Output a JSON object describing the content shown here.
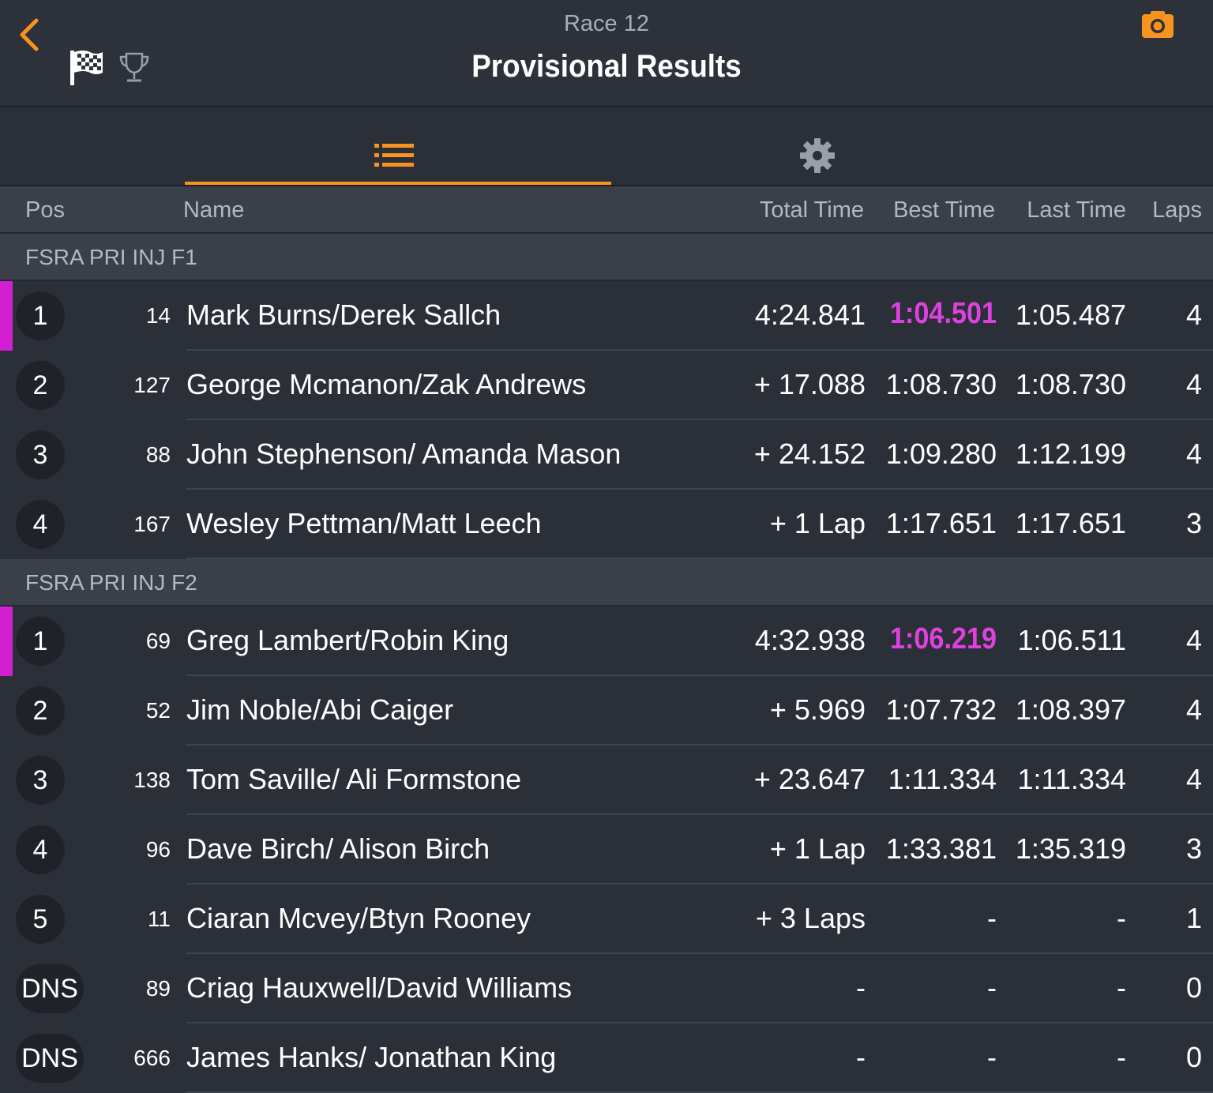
{
  "header": {
    "race_label": "Race 12",
    "title": "Provisional Results",
    "icons": [
      "back-chevron-icon",
      "checkered-flag-icon",
      "trophy-icon",
      "camera-icon"
    ]
  },
  "tabs": [
    {
      "name": "list-icon",
      "active": true
    },
    {
      "name": "gear-icon",
      "active": false
    }
  ],
  "colors": {
    "accent": "#f7931e",
    "fastest": "#e040e0",
    "background": "#2b2f37"
  },
  "columns": {
    "pos": "Pos",
    "name": "Name",
    "total": "Total Time",
    "best": "Best Time",
    "last": "Last Time",
    "laps": "Laps"
  },
  "classes": [
    {
      "name": "FSRA PRI INJ F1",
      "rows": [
        {
          "pos": "1",
          "num": "14",
          "name": "Mark Burns/Derek Sallch",
          "total": "4:24.841",
          "best": "1:04.501",
          "last": "1:05.487",
          "laps": "4",
          "fastest": true
        },
        {
          "pos": "2",
          "num": "127",
          "name": "George Mcmanon/Zak Andrews",
          "total": "+ 17.088",
          "best": "1:08.730",
          "last": "1:08.730",
          "laps": "4",
          "fastest": false
        },
        {
          "pos": "3",
          "num": "88",
          "name": "John Stephenson/ Amanda Mason",
          "total": "+ 24.152",
          "best": "1:09.280",
          "last": "1:12.199",
          "laps": "4",
          "fastest": false
        },
        {
          "pos": "4",
          "num": "167",
          "name": "Wesley Pettman/Matt Leech",
          "total": "+ 1 Lap",
          "best": "1:17.651",
          "last": "1:17.651",
          "laps": "3",
          "fastest": false
        }
      ]
    },
    {
      "name": "FSRA PRI INJ F2",
      "rows": [
        {
          "pos": "1",
          "num": "69",
          "name": "Greg Lambert/Robin King",
          "total": "4:32.938",
          "best": "1:06.219",
          "last": "1:06.511",
          "laps": "4",
          "fastest": true
        },
        {
          "pos": "2",
          "num": "52",
          "name": "Jim Noble/Abi Caiger",
          "total": "+ 5.969",
          "best": "1:07.732",
          "last": "1:08.397",
          "laps": "4",
          "fastest": false
        },
        {
          "pos": "3",
          "num": "138",
          "name": "Tom Saville/ Ali Formstone",
          "total": "+ 23.647",
          "best": "1:11.334",
          "last": "1:11.334",
          "laps": "4",
          "fastest": false
        },
        {
          "pos": "4",
          "num": "96",
          "name": "Dave Birch/ Alison Birch",
          "total": "+ 1 Lap",
          "best": "1:33.381",
          "last": "1:35.319",
          "laps": "3",
          "fastest": false
        },
        {
          "pos": "5",
          "num": "11",
          "name": "Ciaran Mcvey/Btyn Rooney",
          "total": "+ 3 Laps",
          "best": "-",
          "last": "-",
          "laps": "1",
          "fastest": false
        },
        {
          "pos": "DNS",
          "num": "89",
          "name": "Criag Hauxwell/David Williams",
          "total": "-",
          "best": "-",
          "last": "-",
          "laps": "0",
          "fastest": false
        },
        {
          "pos": "DNS",
          "num": "666",
          "name": "James Hanks/ Jonathan King",
          "total": "-",
          "best": "-",
          "last": "-",
          "laps": "0",
          "fastest": false
        }
      ]
    }
  ]
}
